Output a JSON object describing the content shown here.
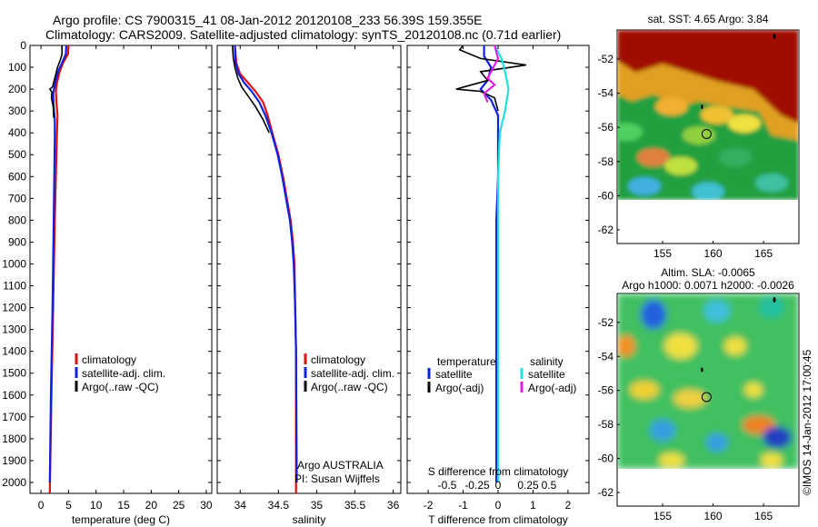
{
  "header": {
    "line1": "Argo profile: CS 7900315_41 08-Jan-2012 20120108_233 56.39S 159.355E",
    "line2": "Climatology: CARS2009. Satellite-adjusted climatology: synTS_20120108.nc (0.71d earlier)"
  },
  "colors": {
    "red": "#e01010",
    "blue": "#1020e0",
    "black": "#000000",
    "cyan": "#20e0e0",
    "magenta": "#e020e0"
  },
  "chart_data": [
    {
      "type": "line",
      "xlabel": "temperature (deg C)",
      "xlim": [
        -2,
        31
      ],
      "xticks": [
        "0",
        "5",
        "10",
        "15",
        "20",
        "25",
        "30"
      ],
      "ylim": [
        0,
        2050
      ],
      "yticks": [
        "0",
        "100",
        "200",
        "300",
        "400",
        "500",
        "600",
        "700",
        "800",
        "900",
        "1000",
        "1100",
        "1200",
        "1300",
        "1400",
        "1500",
        "1600",
        "1700",
        "1800",
        "1900",
        "2000"
      ],
      "legend": [
        "climatology",
        "satellite-adj. clim.",
        "Argo(..raw -QC)"
      ],
      "series": [
        {
          "name": "climatology",
          "color": "red",
          "points": [
            [
              5.0,
              0
            ],
            [
              4.9,
              40
            ],
            [
              4.0,
              80
            ],
            [
              3.4,
              120
            ],
            [
              2.9,
              170
            ],
            [
              2.7,
              210
            ],
            [
              2.8,
              260
            ],
            [
              3.0,
              320
            ],
            [
              2.9,
              400
            ],
            [
              2.7,
              600
            ],
            [
              2.5,
              800
            ],
            [
              2.2,
              1200
            ],
            [
              1.9,
              1600
            ],
            [
              1.6,
              2050
            ]
          ]
        },
        {
          "name": "satellite-adj. clim.",
          "color": "blue",
          "points": [
            [
              4.6,
              0
            ],
            [
              4.5,
              40
            ],
            [
              3.8,
              80
            ],
            [
              3.1,
              120
            ],
            [
              2.6,
              170
            ],
            [
              2.2,
              220
            ],
            [
              2.3,
              280
            ],
            [
              2.5,
              340
            ],
            [
              2.5,
              420
            ],
            [
              2.4,
              600
            ],
            [
              2.3,
              800
            ],
            [
              2.1,
              1200
            ],
            [
              1.8,
              1600
            ],
            [
              1.6,
              2000
            ]
          ]
        },
        {
          "name": "Argo(..raw -QC)",
          "color": "black",
          "points": [
            [
              3.8,
              0
            ],
            [
              3.8,
              40
            ],
            [
              3.6,
              60
            ],
            [
              3.0,
              100
            ],
            [
              2.5,
              150
            ],
            [
              2.1,
              190
            ],
            [
              1.6,
              200
            ],
            [
              2.0,
              215
            ],
            [
              1.9,
              240
            ],
            [
              2.2,
              280
            ],
            [
              2.3,
              330
            ]
          ]
        }
      ]
    },
    {
      "type": "line",
      "xlabel": "salinity",
      "xlim": [
        33.7,
        36.1
      ],
      "xticks": [
        "34",
        "34.5",
        "35",
        "35.5",
        "36"
      ],
      "ylim": [
        0,
        2050
      ],
      "legend": [
        "climatology",
        "satellite-adj. clim.",
        "Argo(..raw -QC)"
      ],
      "annotation": [
        "Argo AUSTRALIA",
        "PI: Susan Wijffels"
      ],
      "series": [
        {
          "name": "climatology",
          "color": "red",
          "points": [
            [
              33.93,
              0
            ],
            [
              33.95,
              80
            ],
            [
              34.0,
              130
            ],
            [
              34.1,
              170
            ],
            [
              34.2,
              210
            ],
            [
              34.3,
              260
            ],
            [
              34.36,
              320
            ],
            [
              34.42,
              400
            ],
            [
              34.5,
              500
            ],
            [
              34.56,
              600
            ],
            [
              34.61,
              700
            ],
            [
              34.66,
              800
            ],
            [
              34.69,
              900
            ],
            [
              34.71,
              1000
            ],
            [
              34.72,
              1200
            ],
            [
              34.73,
              1400
            ],
            [
              34.73,
              2050
            ]
          ]
        },
        {
          "name": "satellite-adj. clim.",
          "color": "blue",
          "points": [
            [
              33.93,
              0
            ],
            [
              33.94,
              80
            ],
            [
              33.98,
              130
            ],
            [
              34.05,
              170
            ],
            [
              34.15,
              210
            ],
            [
              34.25,
              260
            ],
            [
              34.33,
              320
            ],
            [
              34.41,
              400
            ],
            [
              34.49,
              500
            ],
            [
              34.55,
              600
            ],
            [
              34.6,
              700
            ],
            [
              34.65,
              800
            ],
            [
              34.68,
              900
            ],
            [
              34.7,
              1000
            ],
            [
              34.72,
              1200
            ],
            [
              34.73,
              1400
            ],
            [
              34.74,
              2000
            ]
          ]
        },
        {
          "name": "Argo(..raw -QC)",
          "color": "black",
          "points": [
            [
              33.9,
              0
            ],
            [
              33.91,
              60
            ],
            [
              33.93,
              100
            ],
            [
              33.97,
              150
            ],
            [
              34.02,
              190
            ],
            [
              34.1,
              230
            ],
            [
              34.2,
              280
            ],
            [
              34.3,
              340
            ],
            [
              34.38,
              400
            ]
          ]
        }
      ]
    },
    {
      "type": "line",
      "xlabel": "T difference from climatology",
      "xlabel_top": "S difference from climatology",
      "xlim": [
        -2.6,
        2.6
      ],
      "xticks": [
        "-2",
        "-1",
        "0",
        "1",
        "2"
      ],
      "xticks_top": [
        "-0.5",
        "-0.25",
        "0",
        "0.25",
        "0.5"
      ],
      "ylim": [
        0,
        2050
      ],
      "legend_headers": [
        "temperature",
        "salinity"
      ],
      "legend": [
        "satellite",
        "Argo(-adj)",
        "satellite",
        "Argo(-adj)"
      ],
      "series": [
        {
          "name": "satellite",
          "color": "blue",
          "points": [
            [
              -0.4,
              0
            ],
            [
              -0.4,
              50
            ],
            [
              -0.2,
              100
            ],
            [
              -0.3,
              160
            ],
            [
              -0.5,
              200
            ],
            [
              -0.2,
              250
            ],
            [
              0,
              320
            ],
            [
              0,
              400
            ],
            [
              0,
              600
            ],
            [
              -0.05,
              800
            ],
            [
              -0.05,
              2000
            ]
          ]
        },
        {
          "name": "Argo(-adj)",
          "color": "black",
          "points": [
            [
              -1.0,
              0
            ],
            [
              -1.1,
              20
            ],
            [
              -0.5,
              60
            ],
            [
              0.8,
              90
            ],
            [
              -0.5,
              120
            ],
            [
              -0.3,
              160
            ],
            [
              -1.2,
              200
            ],
            [
              -0.5,
              210
            ],
            [
              -0.1,
              240
            ],
            [
              0,
              300
            ]
          ]
        },
        {
          "name": "satellite",
          "color": "cyan",
          "points": [
            [
              -0.1,
              0
            ],
            [
              0.1,
              60
            ],
            [
              0.2,
              120
            ],
            [
              0.3,
              200
            ],
            [
              0.2,
              300
            ],
            [
              0.05,
              400
            ],
            [
              0,
              600
            ],
            [
              0,
              2000
            ]
          ]
        },
        {
          "name": "Argo(-adj)",
          "color": "magenta",
          "points": [
            [
              -0.1,
              0
            ],
            [
              0,
              60
            ],
            [
              -0.3,
              150
            ],
            [
              -0.1,
              180
            ],
            [
              -0.4,
              220
            ],
            [
              -0.3,
              260
            ]
          ]
        }
      ]
    },
    {
      "type": "heatmap",
      "title": "sat. SST: 4.65  Argo: 3.84",
      "xticks": [
        "155",
        "160",
        "165"
      ],
      "yticks": [
        "-52",
        "-54",
        "-56",
        "-58",
        "-60",
        "-62"
      ],
      "xlim": [
        150.5,
        168.5
      ],
      "ylim": [
        -62.8,
        -50.3
      ]
    },
    {
      "type": "heatmap",
      "title_line1": "Altim. SLA: -0.0065",
      "title_line2": "Argo h1000: 0.0071  h2000: -0.0026",
      "xticks": [
        "155",
        "160",
        "165"
      ],
      "yticks": [
        "-52",
        "-54",
        "-56",
        "-58",
        "-60",
        "-62"
      ],
      "xlim": [
        150.5,
        168.5
      ],
      "ylim": [
        -62.8,
        -50.3
      ]
    }
  ],
  "credit": "©IMOS 14-Jan-2012 17:00:45"
}
